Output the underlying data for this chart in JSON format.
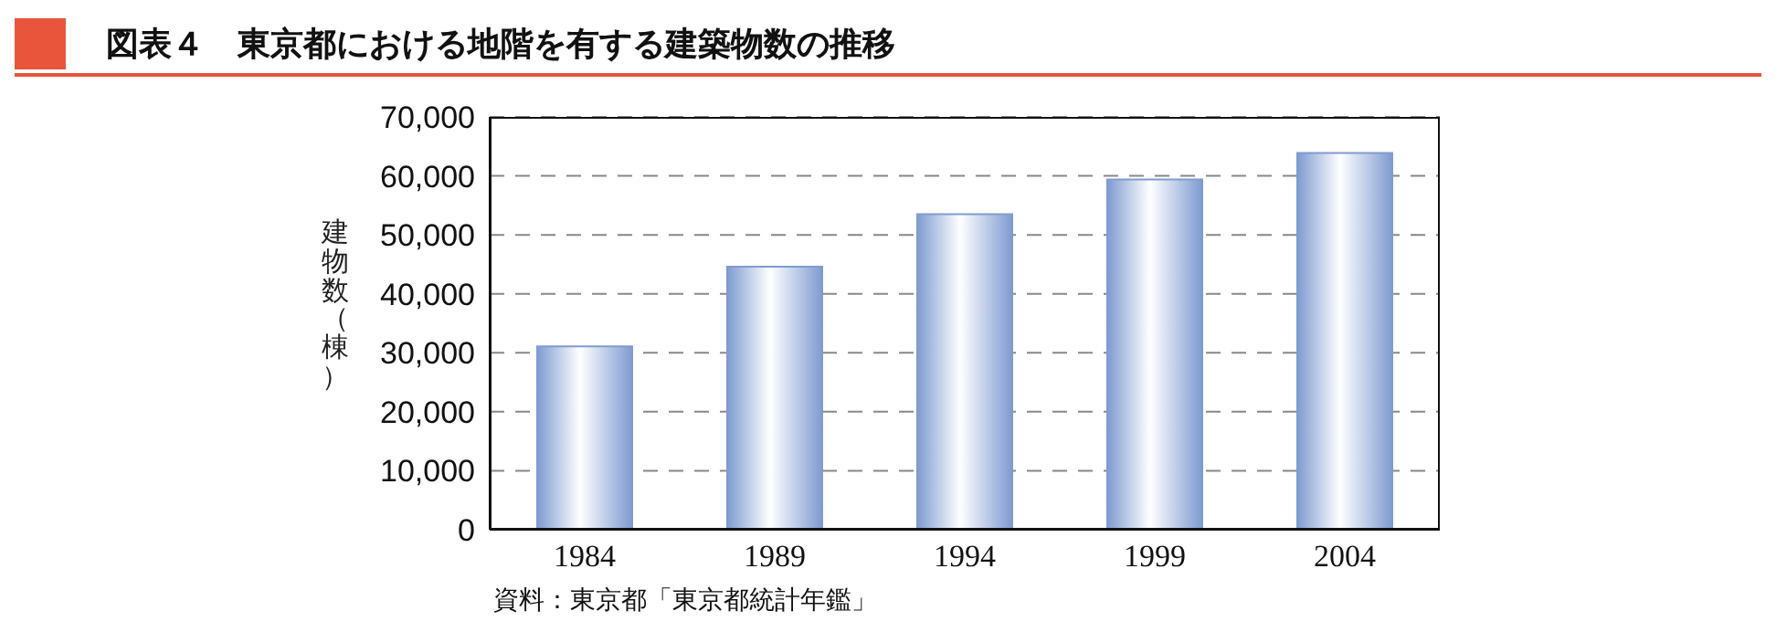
{
  "chart_data": {
    "type": "bar",
    "title": "図表４　東京都における地階を有する建築物数の推移",
    "ylabel": "建物数（棟）",
    "annotations": [
      "資料：東京都「東京都統計年鑑」"
    ],
    "categories": [
      "1984",
      "1989",
      "1994",
      "1999",
      "2004"
    ],
    "values": [
      31100,
      44600,
      53500,
      59400,
      63900
    ],
    "color": "#7f9bd0",
    "ylim": [
      0,
      70000
    ],
    "yticks": [
      0,
      {
        "value": 10000,
        "label": "10,000"
      },
      {
        "value": 20000,
        "label": "20,000"
      },
      {
        "value": 30000,
        "label": "30,000"
      },
      {
        "value": 40000,
        "label": "40,000"
      },
      {
        "value": 50000,
        "label": "50,000"
      },
      {
        "value": 60000,
        "label": "60,000"
      },
      {
        "value": 70000,
        "label": "70,000"
      }
    ],
    "grid": "y"
  }
}
